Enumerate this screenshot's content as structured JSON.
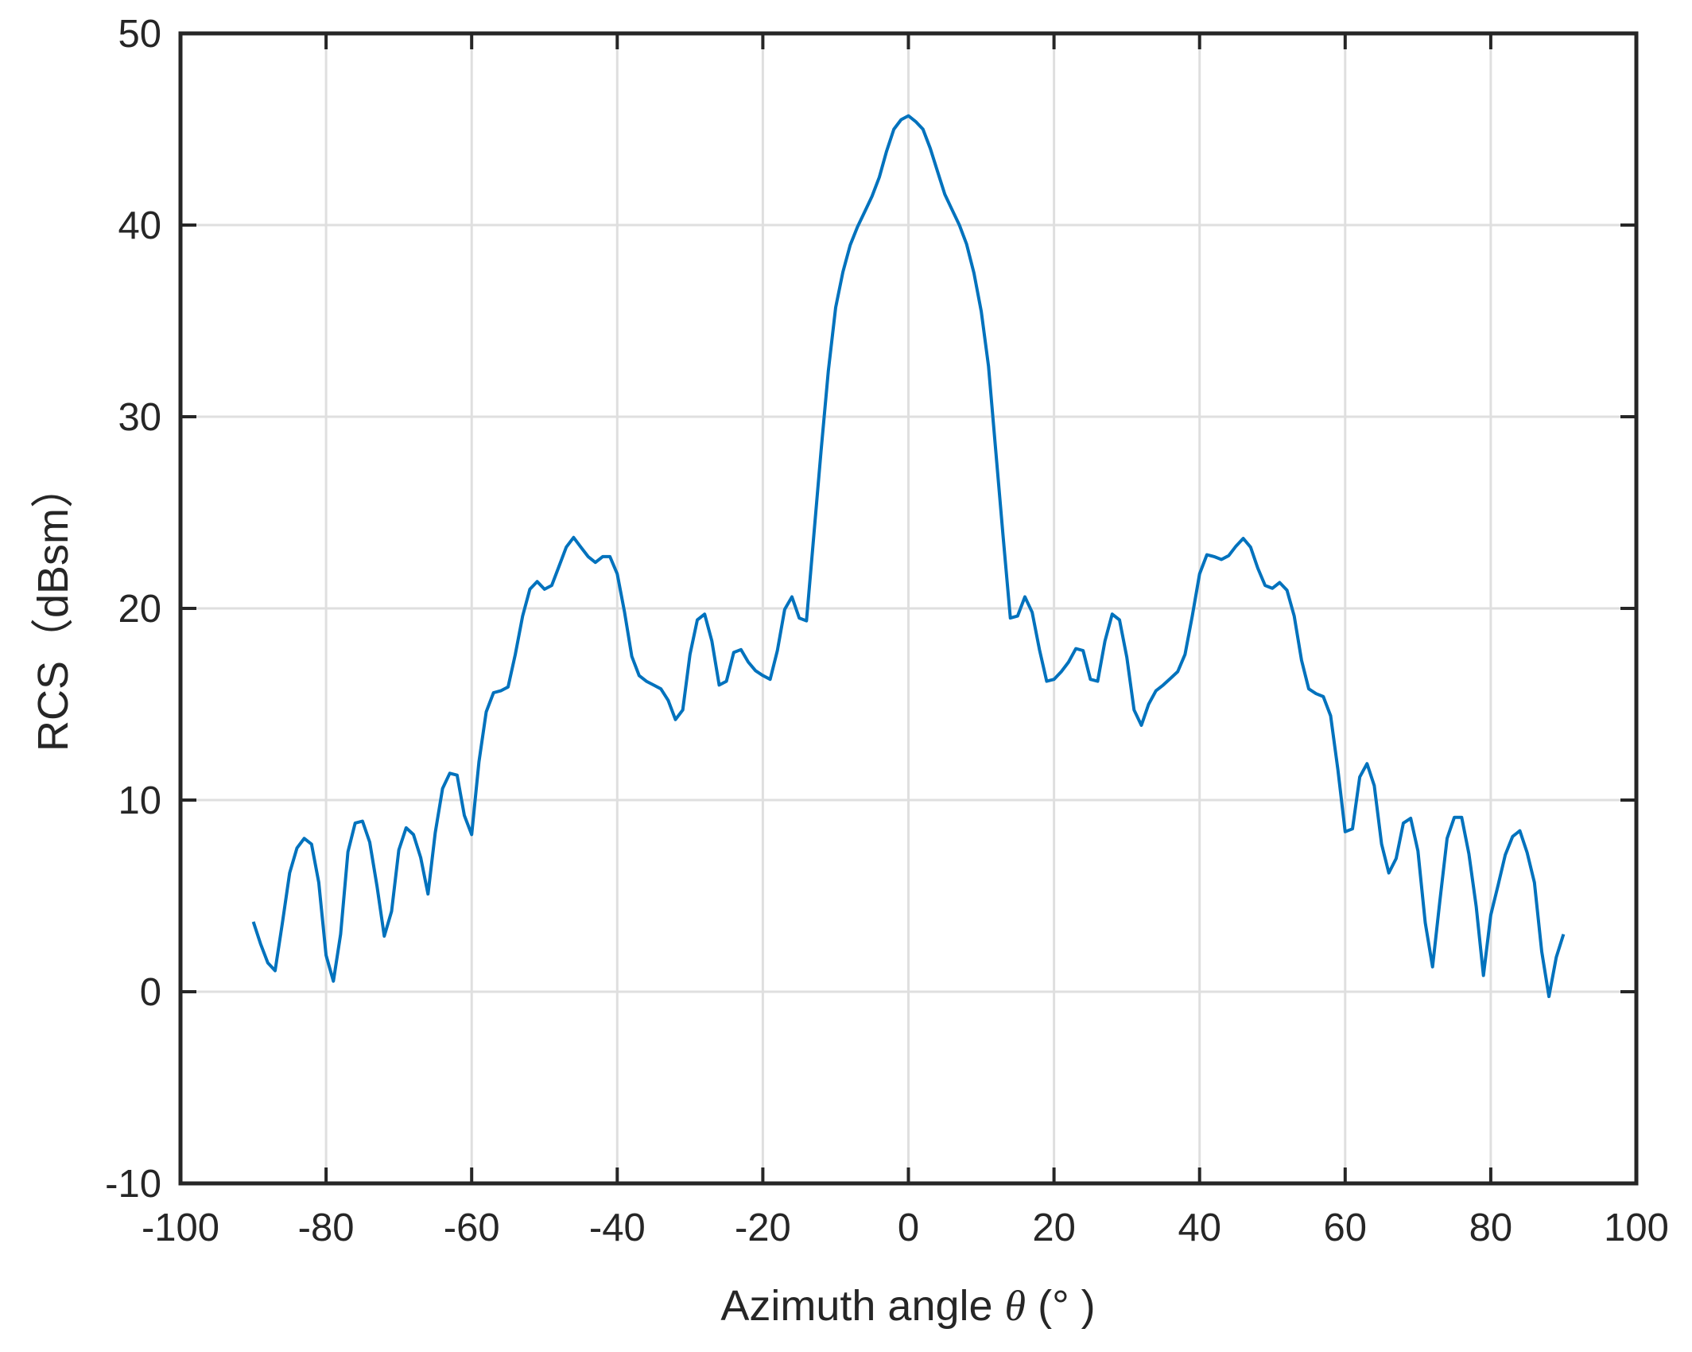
{
  "chart_data": {
    "type": "line",
    "title": "",
    "xlabel": "Azimuth angle θ (°)",
    "xlabel_parts": {
      "prefix": "Azimuth angle ",
      "symbol": "θ",
      "suffix": " (° )"
    },
    "ylabel": "RCS（dBsm）",
    "xlim": [
      -100,
      100
    ],
    "ylim": [
      -10,
      50
    ],
    "xticks": [
      -100,
      -80,
      -60,
      -40,
      -20,
      0,
      20,
      40,
      60,
      80,
      100
    ],
    "yticks": [
      -10,
      0,
      10,
      20,
      30,
      40,
      50
    ],
    "xtick_labels": [
      "-100",
      "-80",
      "-60",
      "-40",
      "-20",
      "0",
      "20",
      "40",
      "60",
      "80",
      "100"
    ],
    "ytick_labels": [
      "-10",
      "0",
      "10",
      "20",
      "30",
      "40",
      "50"
    ],
    "grid": true,
    "legend": null,
    "colors": {
      "line": "#0072BD",
      "grid": "#dfdfdf",
      "axes": "#262626"
    },
    "series": [
      {
        "name": "RCS",
        "x_start": -90,
        "x_step": 1,
        "x": [
          -90,
          -89,
          -88,
          -87,
          -86,
          -85,
          -84,
          -83,
          -82,
          -81,
          -80,
          -79,
          -78,
          -77,
          -76,
          -75,
          -74,
          -73,
          -72,
          -71,
          -70,
          -69,
          -68,
          -67,
          -66,
          -65,
          -64,
          -63,
          -62,
          -61,
          -60,
          -59,
          -58,
          -57,
          -56,
          -55,
          -54,
          -53,
          -52,
          -51,
          -50,
          -49,
          -48,
          -47,
          -46,
          -45,
          -44,
          -43,
          -42,
          -41,
          -40,
          -39,
          -38,
          -37,
          -36,
          -35,
          -34,
          -33,
          -32,
          -31,
          -30,
          -29,
          -28,
          -27,
          -26,
          -25,
          -24,
          -23,
          -22,
          -21,
          -20,
          -19,
          -18,
          -17,
          -16,
          -15,
          -14,
          -13,
          -12,
          -11,
          -10,
          -9,
          -8,
          -7,
          -6,
          -5,
          -4,
          -3,
          -2,
          -1,
          0,
          1,
          2,
          3,
          4,
          5,
          6,
          7,
          8,
          9,
          10,
          11,
          12,
          13,
          14,
          15,
          16,
          17,
          18,
          19,
          20,
          21,
          22,
          23,
          24,
          25,
          26,
          27,
          28,
          29,
          30,
          31,
          32,
          33,
          34,
          35,
          36,
          37,
          38,
          39,
          40,
          41,
          42,
          43,
          44,
          45,
          46,
          47,
          48,
          49,
          50,
          51,
          52,
          53,
          54,
          55,
          56,
          57,
          58,
          59,
          60,
          61,
          62,
          63,
          64,
          65,
          66,
          67,
          68,
          69,
          70,
          71,
          72,
          73,
          74,
          75,
          76,
          77,
          78,
          79,
          80,
          81,
          82,
          83,
          84,
          85,
          86,
          87,
          88,
          89,
          90
        ],
        "values": [
          3.65,
          2.5,
          1.5,
          1.1,
          3.6,
          6.2,
          7.5,
          8.0,
          7.7,
          5.7,
          1.9,
          0.55,
          3.0,
          7.3,
          8.8,
          8.9,
          7.8,
          5.5,
          2.9,
          4.2,
          7.4,
          8.55,
          8.2,
          7.0,
          5.1,
          8.3,
          10.6,
          11.4,
          11.3,
          9.2,
          8.2,
          12.0,
          14.6,
          15.6,
          15.7,
          15.9,
          17.6,
          19.6,
          21.0,
          21.4,
          21.0,
          21.2,
          22.2,
          23.2,
          23.7,
          23.2,
          22.7,
          22.4,
          22.7,
          22.7,
          21.8,
          19.8,
          17.5,
          16.5,
          16.2,
          16.0,
          15.8,
          15.2,
          14.2,
          14.7,
          17.6,
          19.4,
          19.7,
          18.3,
          16.0,
          16.2,
          17.7,
          17.85,
          17.2,
          16.75,
          16.5,
          16.3,
          17.8,
          19.95,
          20.6,
          19.5,
          19.35,
          23.8,
          28.2,
          32.4,
          35.7,
          37.55,
          38.96,
          39.9,
          40.7,
          41.5,
          42.5,
          43.85,
          45.0,
          45.5,
          45.7,
          45.4,
          45.0,
          44.0,
          42.8,
          41.6,
          40.8,
          40.0,
          39.0,
          37.5,
          35.5,
          32.65,
          28.2,
          23.8,
          19.5,
          19.6,
          20.6,
          19.8,
          17.85,
          16.2,
          16.3,
          16.7,
          17.2,
          17.9,
          17.8,
          16.3,
          16.2,
          18.3,
          19.7,
          19.4,
          17.45,
          14.7,
          13.9,
          15.0,
          15.7,
          16.0,
          16.35,
          16.7,
          17.6,
          19.6,
          21.8,
          22.8,
          22.7,
          22.55,
          22.75,
          23.25,
          23.65,
          23.2,
          22.1,
          21.2,
          21.05,
          21.35,
          20.95,
          19.6,
          17.3,
          15.8,
          15.55,
          15.4,
          14.4,
          11.6,
          8.35,
          8.5,
          11.2,
          11.9,
          10.75,
          7.7,
          6.2,
          6.95,
          8.8,
          9.05,
          7.35,
          3.6,
          1.3,
          4.7,
          8.0,
          9.1,
          9.1,
          7.2,
          4.45,
          0.85,
          4.0,
          5.55,
          7.15,
          8.1,
          8.4,
          7.25,
          5.7,
          2.1,
          -0.25,
          1.8,
          3.0
        ]
      }
    ]
  }
}
